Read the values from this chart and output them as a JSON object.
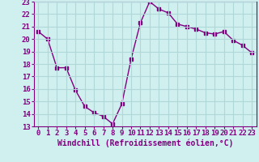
{
  "x": [
    0,
    1,
    2,
    3,
    4,
    5,
    6,
    7,
    8,
    9,
    10,
    11,
    12,
    13,
    14,
    15,
    16,
    17,
    18,
    19,
    20,
    21,
    22,
    23
  ],
  "y": [
    20.6,
    20.0,
    17.7,
    17.7,
    15.9,
    14.6,
    14.1,
    13.8,
    13.2,
    14.8,
    18.4,
    21.3,
    23.0,
    22.4,
    22.1,
    21.2,
    21.0,
    20.8,
    20.5,
    20.4,
    20.6,
    19.9,
    19.5,
    18.9
  ],
  "line_color": "#800080",
  "marker": "s",
  "marker_size": 2.5,
  "bg_color": "#d0f0f0",
  "grid_color": "#b0d8d8",
  "xlabel": "Windchill (Refroidissement éolien,°C)",
  "xlabel_fontsize": 7,
  "tick_fontsize": 6.5,
  "ylim": [
    13,
    23
  ],
  "xlim": [
    0,
    23
  ],
  "yticks": [
    13,
    14,
    15,
    16,
    17,
    18,
    19,
    20,
    21,
    22,
    23
  ],
  "xticks": [
    0,
    1,
    2,
    3,
    4,
    5,
    6,
    7,
    8,
    9,
    10,
    11,
    12,
    13,
    14,
    15,
    16,
    17,
    18,
    19,
    20,
    21,
    22,
    23
  ]
}
